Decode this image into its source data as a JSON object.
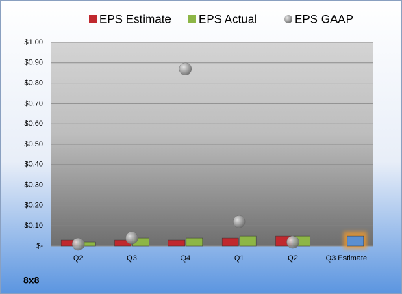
{
  "chart_data": {
    "type": "bar",
    "categories": [
      "Q2",
      "Q3",
      "Q4",
      "Q1",
      "Q2",
      "Q3 Estimate"
    ],
    "series": [
      {
        "name": "EPS Estimate",
        "kind": "bar",
        "color": "#c0282e",
        "values": [
          0.03,
          0.03,
          0.03,
          0.04,
          0.05,
          null
        ]
      },
      {
        "name": "EPS Actual",
        "kind": "bar",
        "color": "#8db646",
        "colors": [
          "#8db646",
          "#8db646",
          "#8db646",
          "#8db646",
          "#8db646",
          "#5b8fd0"
        ],
        "values": [
          0.02,
          0.04,
          0.04,
          0.05,
          0.05,
          0.05
        ]
      },
      {
        "name": "EPS GAAP",
        "kind": "scatter",
        "color": "#8a8a8a",
        "values": [
          0.01,
          0.04,
          0.87,
          0.12,
          0.02,
          null
        ]
      }
    ],
    "ylim": [
      0,
      1
    ],
    "yticks": [
      {
        "value": 0,
        "label": "$-"
      },
      {
        "value": 0.1,
        "label": "$0.10"
      },
      {
        "value": 0.2,
        "label": "$0.20"
      },
      {
        "value": 0.3,
        "label": "$0.30"
      },
      {
        "value": 0.4,
        "label": "$0.40"
      },
      {
        "value": 0.5,
        "label": "$0.50"
      },
      {
        "value": 0.6,
        "label": "$0.60"
      },
      {
        "value": 0.7,
        "label": "$0.70"
      },
      {
        "value": 0.8,
        "label": "$0.80"
      },
      {
        "value": 0.9,
        "label": "$0.90"
      },
      {
        "value": 1,
        "label": "$1.00"
      }
    ],
    "grid": true,
    "footer": "8x8"
  }
}
